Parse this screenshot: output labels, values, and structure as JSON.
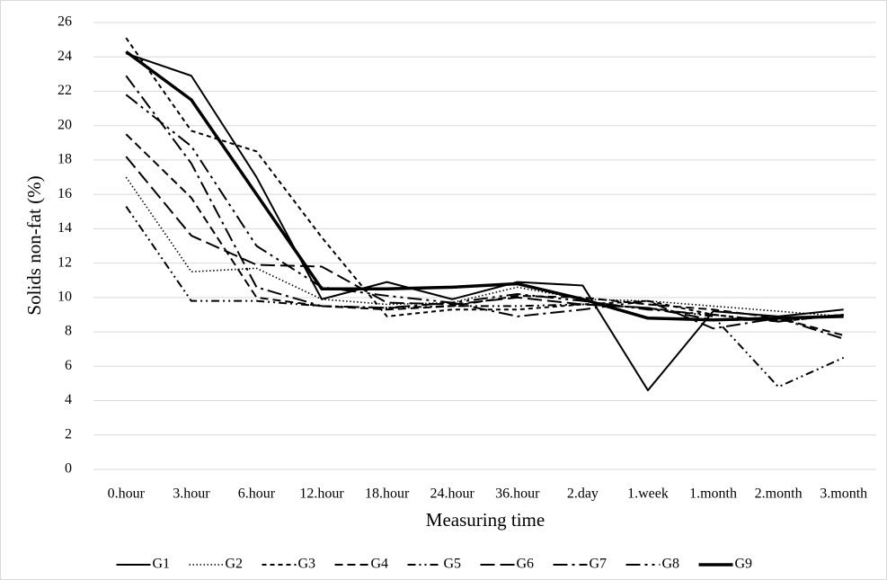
{
  "chart_data": {
    "type": "line",
    "x_label": "Measuring time",
    "y_label": "Solids non-fat (%)",
    "categories": [
      "0.hour",
      "3.hour",
      "6.hour",
      "12.hour",
      "18.hour",
      "24.hour",
      "36.hour",
      "2.day",
      "1.week",
      "1.month",
      "2.month",
      "3.month"
    ],
    "ylim": [
      0,
      26
    ],
    "yticks": [
      0,
      2,
      4,
      6,
      8,
      10,
      12,
      14,
      16,
      18,
      20,
      22,
      24,
      26
    ],
    "grid": true,
    "legend": "bottom",
    "series": [
      {
        "name": "G1",
        "color": "#000000",
        "dash": "none",
        "width": 2,
        "values": [
          24.2,
          22.9,
          17.0,
          9.9,
          10.9,
          9.9,
          10.9,
          10.7,
          4.6,
          9.2,
          8.9,
          9.3
        ]
      },
      {
        "name": "G2",
        "color": "#000000",
        "dash": "1.5,2.5",
        "width": 1.6,
        "values": [
          17.0,
          11.5,
          11.7,
          9.9,
          9.6,
          9.7,
          10.6,
          9.9,
          9.8,
          9.5,
          9.2,
          8.9
        ]
      },
      {
        "name": "G3",
        "color": "#000000",
        "dash": "5,4",
        "width": 2,
        "values": [
          25.1,
          19.7,
          18.5,
          13.5,
          8.9,
          9.3,
          9.3,
          9.6,
          9.8,
          9.0,
          8.6,
          9.0
        ]
      },
      {
        "name": "G4",
        "color": "#000000",
        "dash": "9,5",
        "width": 2,
        "values": [
          19.5,
          15.8,
          10.0,
          9.5,
          9.3,
          9.5,
          10.1,
          10.0,
          9.6,
          9.3,
          8.8,
          7.8
        ]
      },
      {
        "name": "G5",
        "color": "#000000",
        "dash": "9,4,2,4,2,4",
        "width": 2,
        "values": [
          15.3,
          9.8,
          9.8,
          9.5,
          9.4,
          9.5,
          9.5,
          9.6,
          9.4,
          8.9,
          4.8,
          6.5
        ]
      },
      {
        "name": "G6",
        "color": "#000000",
        "dash": "16,6",
        "width": 2,
        "values": [
          18.2,
          13.6,
          11.9,
          11.8,
          9.7,
          9.6,
          10.0,
          9.6,
          9.4,
          8.7,
          8.7,
          9.0
        ]
      },
      {
        "name": "G7",
        "color": "#000000",
        "dash": "16,5,3,5",
        "width": 2,
        "values": [
          22.9,
          17.8,
          10.6,
          9.5,
          9.4,
          9.7,
          8.9,
          9.3,
          9.8,
          8.2,
          8.8,
          7.6
        ]
      },
      {
        "name": "G8",
        "color": "#000000",
        "dash": "16,5,3,5,3,5",
        "width": 2,
        "values": [
          21.8,
          18.8,
          13.0,
          10.6,
          10.1,
          9.7,
          10.2,
          9.8,
          9.3,
          9.0,
          8.6,
          9.0
        ]
      },
      {
        "name": "G9",
        "color": "#000000",
        "dash": "none",
        "width": 3.5,
        "values": [
          24.3,
          21.5,
          16.0,
          10.5,
          10.5,
          10.6,
          10.8,
          9.9,
          8.8,
          8.7,
          8.8,
          8.9
        ]
      }
    ]
  }
}
